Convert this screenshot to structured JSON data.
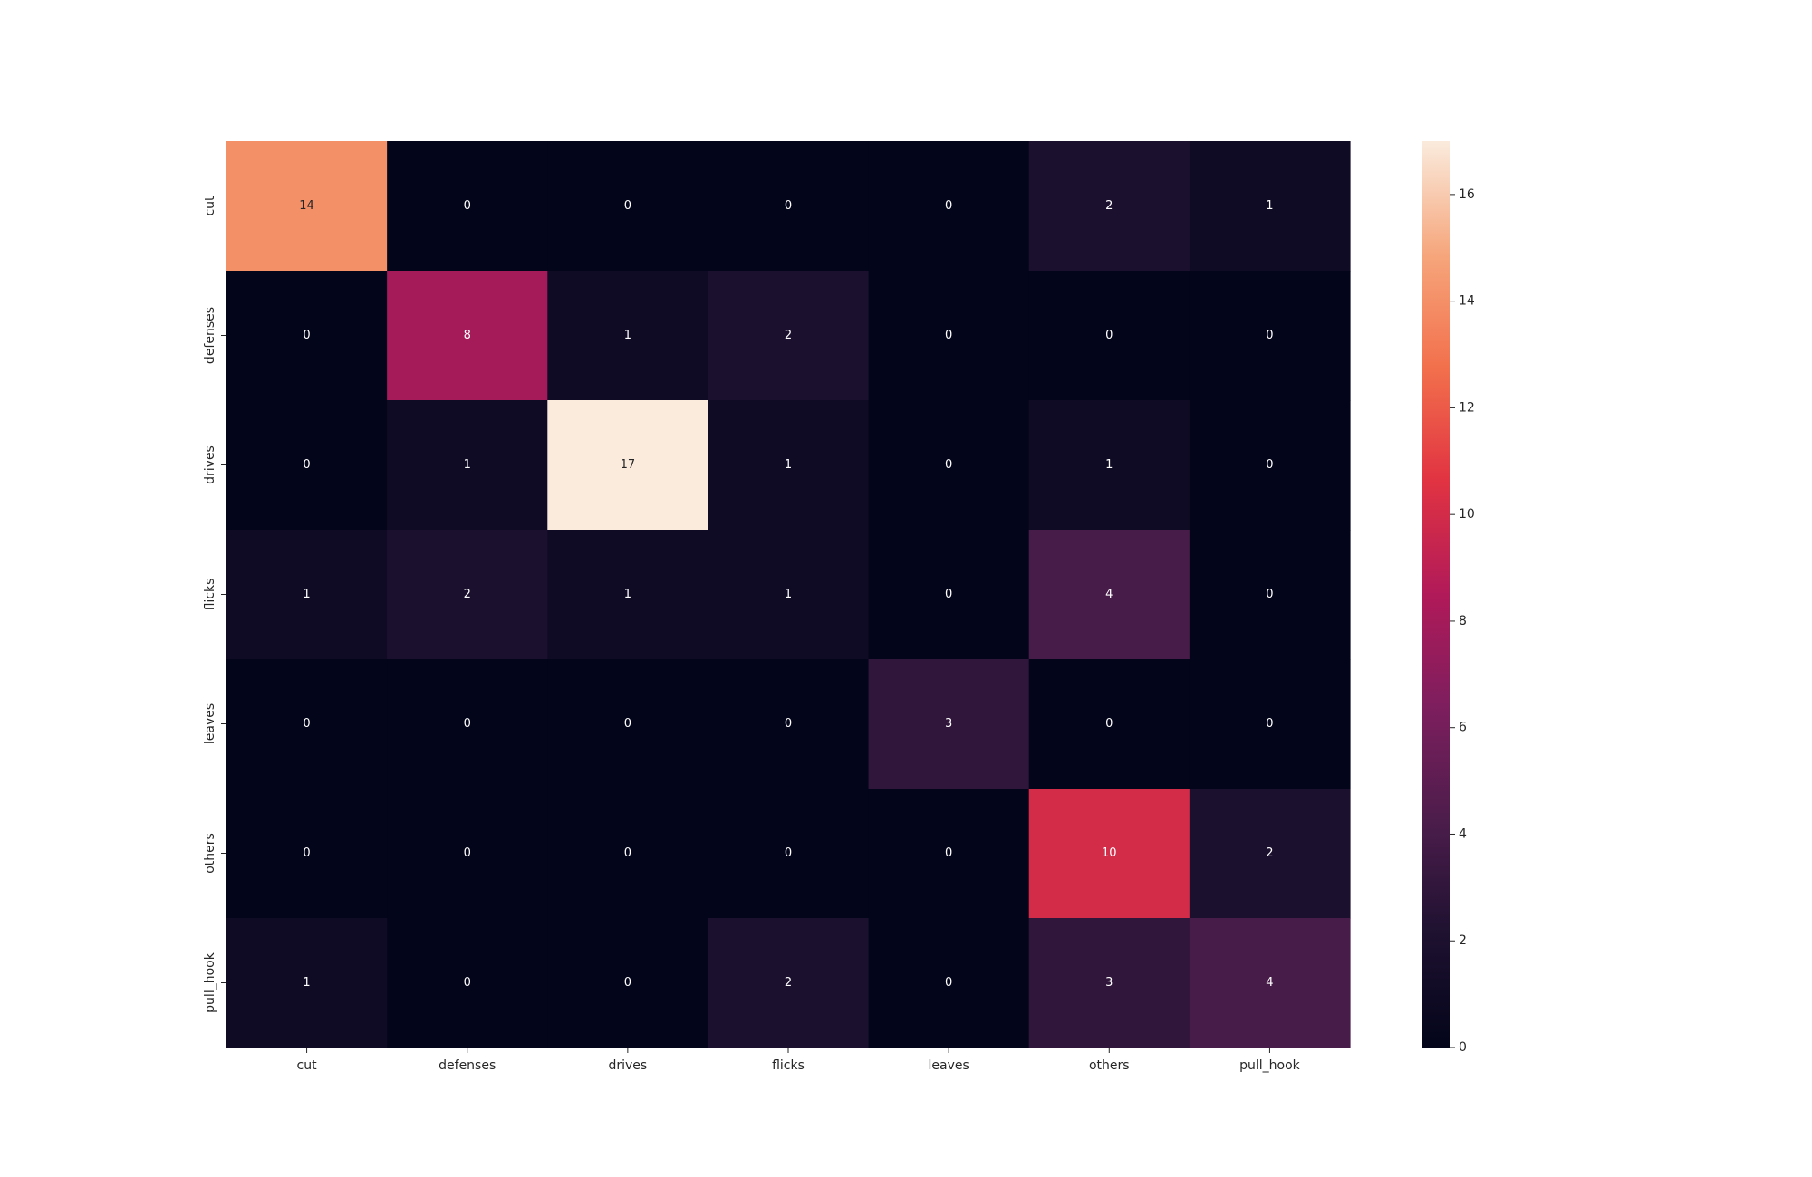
{
  "chart_data": {
    "type": "heatmap",
    "title": "",
    "xlabel": "",
    "ylabel": "",
    "x_categories": [
      "cut",
      "defenses",
      "drives",
      "flicks",
      "leaves",
      "others",
      "pull_hook"
    ],
    "y_categories": [
      "cut",
      "defenses",
      "drives",
      "flicks",
      "leaves",
      "others",
      "pull_hook"
    ],
    "values": [
      [
        14,
        0,
        0,
        0,
        0,
        2,
        1
      ],
      [
        0,
        8,
        1,
        2,
        0,
        0,
        0
      ],
      [
        0,
        1,
        17,
        1,
        0,
        1,
        0
      ],
      [
        1,
        2,
        1,
        1,
        0,
        4,
        0
      ],
      [
        0,
        0,
        0,
        0,
        3,
        0,
        0
      ],
      [
        0,
        0,
        0,
        0,
        0,
        10,
        2
      ],
      [
        1,
        0,
        0,
        2,
        0,
        3,
        4
      ]
    ],
    "annotations": true,
    "colormap": "rocket",
    "colorbar": {
      "min": 0,
      "max": 17,
      "ticks": [
        0,
        2,
        4,
        6,
        8,
        10,
        12,
        14,
        16
      ]
    }
  }
}
